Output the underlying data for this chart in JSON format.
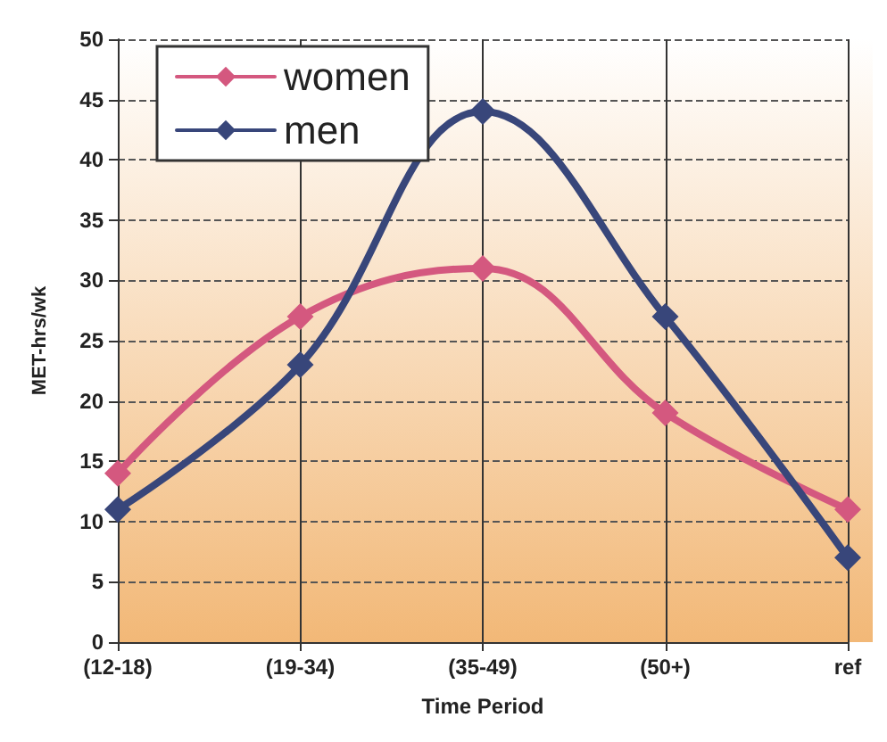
{
  "chart_data": {
    "type": "line",
    "xlabel": "Time Period",
    "ylabel": "MET-hrs/wk",
    "categories": [
      "(12-18)",
      "(19-34)",
      "(35-49)",
      "(50+)",
      "ref"
    ],
    "series": [
      {
        "name": "women",
        "color": "#d4587f",
        "values": [
          14,
          27,
          31,
          19,
          11
        ]
      },
      {
        "name": "men",
        "color": "#38467a",
        "values": [
          11,
          23,
          44,
          27,
          7
        ]
      }
    ],
    "ylim": [
      0,
      50
    ],
    "yticks": [
      0,
      5,
      10,
      15,
      20,
      25,
      30,
      35,
      40,
      45,
      50
    ],
    "grid": true,
    "legend": "top left",
    "marker": "diamond",
    "line_style": "solid"
  }
}
